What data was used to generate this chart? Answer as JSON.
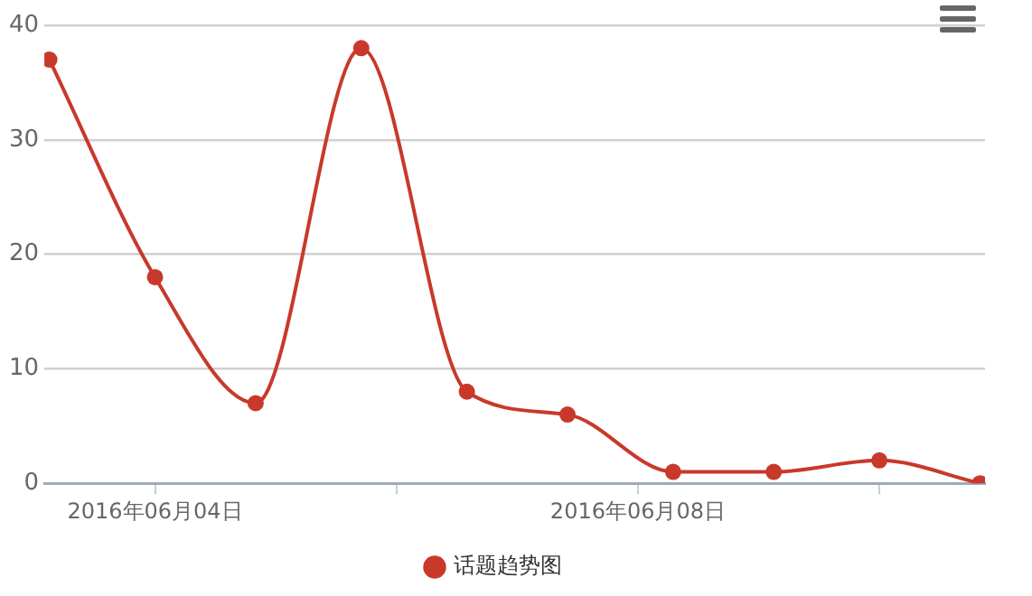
{
  "chart_data": {
    "type": "line",
    "x": [
      "2016-06-03T03:00",
      "2016-06-04T00:00",
      "2016-06-04T20:00",
      "2016-06-05T17:00",
      "2016-06-06T14:00",
      "2016-06-07T10:00",
      "2016-06-08T07:00",
      "2016-06-09T03:00",
      "2016-06-10T00:00",
      "2016-06-10T20:00"
    ],
    "series": [
      {
        "name": "话题趋势图",
        "color": "#c8392b",
        "values": [
          37,
          18,
          7,
          38,
          8,
          6,
          1,
          1,
          2,
          0
        ]
      }
    ],
    "xlim": [
      "2016-06-03T02:00",
      "2016-06-10T21:00"
    ],
    "xticks": [
      {
        "value": "2016-06-04",
        "label": "2016年06月04日"
      },
      {
        "value": "2016-06-06",
        "label": null
      },
      {
        "value": "2016-06-08",
        "label": "2016年06月08日"
      },
      {
        "value": "2016-06-10",
        "label": null
      }
    ],
    "ylim": [
      0,
      40
    ],
    "yticks": [
      0,
      10,
      20,
      30,
      40
    ],
    "grid": "y",
    "legend": "bottom",
    "marker": "circle",
    "line_style": "solid"
  }
}
